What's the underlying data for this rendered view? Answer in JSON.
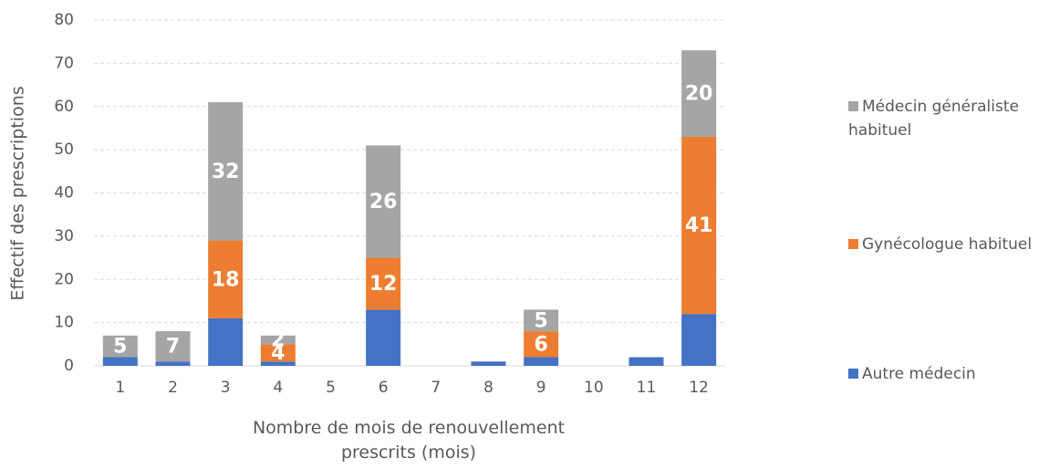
{
  "chart_data": {
    "type": "bar",
    "stacked": true,
    "x_label": "Nombre de mois de renouvellement prescrits (mois)",
    "y_label": "Effectif des prescriptions",
    "categories": [
      "1",
      "2",
      "3",
      "4",
      "5",
      "6",
      "7",
      "8",
      "9",
      "10",
      "11",
      "12"
    ],
    "series": [
      {
        "name": "Autre médecin",
        "color": "#4472c4",
        "values": [
          2,
          1,
          11,
          1,
          0,
          13,
          0,
          1,
          2,
          0,
          2,
          12
        ]
      },
      {
        "name": "Gynécologue habituel",
        "color": "#ed7d31",
        "values": [
          0,
          0,
          18,
          4,
          0,
          12,
          0,
          0,
          6,
          0,
          0,
          41
        ]
      },
      {
        "name": "Médecin généraliste habituel",
        "color": "#a5a5a5",
        "values": [
          5,
          7,
          32,
          2,
          0,
          26,
          0,
          0,
          5,
          0,
          0,
          20
        ]
      }
    ],
    "ylim": [
      0,
      80
    ],
    "yticks": [
      0,
      10,
      20,
      30,
      40,
      50,
      60,
      70,
      80
    ],
    "grid": true,
    "legend": "right"
  }
}
